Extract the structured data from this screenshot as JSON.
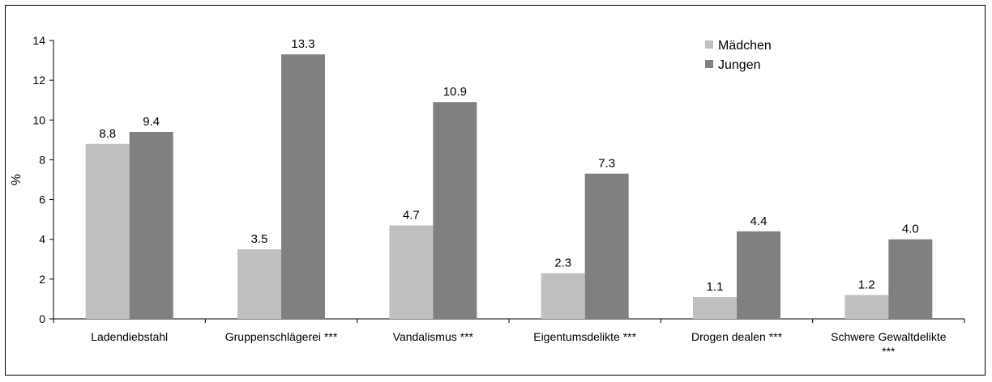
{
  "chart_data": {
    "type": "bar",
    "title": "",
    "xlabel": "",
    "ylabel": "%",
    "ylim": [
      0,
      14
    ],
    "yticks": [
      0,
      2,
      4,
      6,
      8,
      10,
      12,
      14
    ],
    "categories": [
      "Ladendiebstahl",
      "Gruppenschlägerei ***",
      "Vandalismus ***",
      "Eigentumsdelikte ***",
      "Drogen dealen ***",
      "Schwere Gewaltdelikte ***"
    ],
    "category_lines": [
      [
        "Ladendiebstahl"
      ],
      [
        "Gruppenschlägerei ***"
      ],
      [
        "Vandalismus ***"
      ],
      [
        "Eigentumsdelikte ***"
      ],
      [
        "Drogen dealen ***"
      ],
      [
        "Schwere Gewaltdelikte",
        "***"
      ]
    ],
    "series": [
      {
        "name": "Mädchen",
        "values": [
          8.8,
          3.5,
          4.7,
          2.3,
          1.1,
          1.2
        ],
        "labels": [
          "8.8",
          "3.5",
          "4.7",
          "2.3",
          "1.1",
          "1.2"
        ],
        "color": "#c0c0c0"
      },
      {
        "name": "Jungen",
        "values": [
          9.4,
          13.3,
          10.9,
          7.3,
          4.4,
          4.0
        ],
        "labels": [
          "9.4",
          "13.3",
          "10.9",
          "7.3",
          "4.4",
          "4.0"
        ],
        "color": "#808080"
      }
    ],
    "grid": false,
    "legend": "top-right"
  }
}
